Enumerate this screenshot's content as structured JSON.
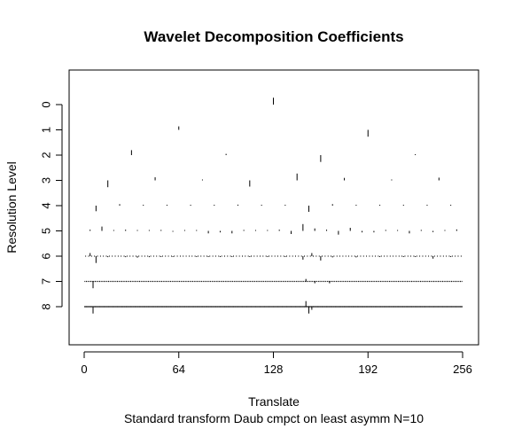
{
  "chart_data": {
    "type": "wavelet-coefficient-plot",
    "title": "Wavelet Decomposition Coefficients",
    "xlabel": "Translate",
    "sublabel": "Standard transform Daub cmpct on least asymm N=10",
    "ylabel": "Resolution Level",
    "xlim": [
      0,
      256
    ],
    "ylim": [
      0,
      8
    ],
    "x_ticks": [
      0,
      64,
      128,
      192,
      256
    ],
    "x_tick_labels": [
      "0",
      "64",
      "128",
      "192",
      "256"
    ],
    "y_ticks": [
      0,
      1,
      2,
      3,
      4,
      5,
      6,
      7,
      8
    ],
    "y_tick_labels": [
      "0",
      "1",
      "2",
      "3",
      "4",
      "5",
      "6",
      "7",
      "8"
    ],
    "bar_color": "#000000",
    "levels": [
      {
        "level": 0,
        "coefficients": [
          {
            "x": 128,
            "value": 0.55
          }
        ]
      },
      {
        "level": 1,
        "coefficients": [
          {
            "x": 64,
            "value": 0.28
          },
          {
            "x": 192,
            "value": -0.55
          }
        ]
      },
      {
        "level": 2,
        "coefficients": [
          {
            "x": 32,
            "value": 0.4
          },
          {
            "x": 96,
            "value": 0.1
          },
          {
            "x": 160,
            "value": -0.55
          },
          {
            "x": 224,
            "value": 0.06
          }
        ]
      },
      {
        "level": 3,
        "coefficients": [
          {
            "x": 16,
            "value": -0.55
          },
          {
            "x": 48,
            "value": 0.25
          },
          {
            "x": 80,
            "value": 0.05
          },
          {
            "x": 112,
            "value": -0.5
          },
          {
            "x": 144,
            "value": 0.55
          },
          {
            "x": 176,
            "value": 0.2
          },
          {
            "x": 208,
            "value": 0.04
          },
          {
            "x": 240,
            "value": 0.22
          }
        ]
      },
      {
        "level": 4,
        "coefficients": [
          {
            "x": 8,
            "value": -0.45
          },
          {
            "x": 24,
            "value": 0.12
          },
          {
            "x": 40,
            "value": 0.05
          },
          {
            "x": 56,
            "value": 0.04
          },
          {
            "x": 72,
            "value": 0.06
          },
          {
            "x": 88,
            "value": 0.03
          },
          {
            "x": 104,
            "value": 0.08
          },
          {
            "x": 120,
            "value": 0.05
          },
          {
            "x": 136,
            "value": 0.06
          },
          {
            "x": 152,
            "value": -0.5
          },
          {
            "x": 168,
            "value": 0.12
          },
          {
            "x": 184,
            "value": 0.05
          },
          {
            "x": 200,
            "value": 0.04
          },
          {
            "x": 216,
            "value": 0.05
          },
          {
            "x": 232,
            "value": 0.03
          },
          {
            "x": 248,
            "value": 0.04
          }
        ]
      },
      {
        "level": 5,
        "coefficients": [
          {
            "x": 4,
            "value": 0.1
          },
          {
            "x": 12,
            "value": 0.35
          },
          {
            "x": 20,
            "value": 0.05
          },
          {
            "x": 28,
            "value": 0.1
          },
          {
            "x": 36,
            "value": 0.05
          },
          {
            "x": 44,
            "value": 0.05
          },
          {
            "x": 52,
            "value": 0.08
          },
          {
            "x": 60,
            "value": -0.05
          },
          {
            "x": 68,
            "value": 0.05
          },
          {
            "x": 76,
            "value": 0.06
          },
          {
            "x": 84,
            "value": -0.2
          },
          {
            "x": 92,
            "value": -0.12
          },
          {
            "x": 100,
            "value": -0.2
          },
          {
            "x": 108,
            "value": 0.08
          },
          {
            "x": 116,
            "value": 0.05
          },
          {
            "x": 124,
            "value": 0.05
          },
          {
            "x": 132,
            "value": 0.1
          },
          {
            "x": 140,
            "value": -0.25
          },
          {
            "x": 148,
            "value": 0.55
          },
          {
            "x": 156,
            "value": 0.2
          },
          {
            "x": 164,
            "value": 0.1
          },
          {
            "x": 172,
            "value": -0.3
          },
          {
            "x": 180,
            "value": 0.25
          },
          {
            "x": 188,
            "value": -0.12
          },
          {
            "x": 196,
            "value": -0.12
          },
          {
            "x": 204,
            "value": 0.08
          },
          {
            "x": 212,
            "value": 0.05
          },
          {
            "x": 220,
            "value": -0.2
          },
          {
            "x": 228,
            "value": 0.08
          },
          {
            "x": 236,
            "value": -0.1
          },
          {
            "x": 244,
            "value": 0.05
          },
          {
            "x": 252,
            "value": 0.12
          }
        ]
      },
      {
        "level": 6,
        "coefficients": [
          {
            "x": 4,
            "value": 0.25
          },
          {
            "x": 8,
            "value": -0.55
          },
          {
            "x": 16,
            "value": -0.08
          },
          {
            "x": 28,
            "value": -0.08
          },
          {
            "x": 36,
            "value": -0.12
          },
          {
            "x": 44,
            "value": -0.08
          },
          {
            "x": 52,
            "value": -0.06
          },
          {
            "x": 60,
            "value": -0.05
          },
          {
            "x": 76,
            "value": -0.05
          },
          {
            "x": 84,
            "value": -0.05
          },
          {
            "x": 92,
            "value": -0.06
          },
          {
            "x": 100,
            "value": -0.05
          },
          {
            "x": 112,
            "value": -0.06
          },
          {
            "x": 124,
            "value": -0.05
          },
          {
            "x": 136,
            "value": -0.05
          },
          {
            "x": 148,
            "value": -0.28
          },
          {
            "x": 154,
            "value": 0.25
          },
          {
            "x": 160,
            "value": -0.35
          },
          {
            "x": 168,
            "value": -0.1
          },
          {
            "x": 184,
            "value": -0.1
          },
          {
            "x": 200,
            "value": -0.06
          },
          {
            "x": 216,
            "value": -0.05
          },
          {
            "x": 224,
            "value": -0.05
          },
          {
            "x": 236,
            "value": -0.2
          },
          {
            "x": 248,
            "value": -0.05
          }
        ]
      },
      {
        "level": 7,
        "coefficients": [
          {
            "x": 6,
            "value": -0.55
          },
          {
            "x": 150,
            "value": 0.2
          },
          {
            "x": 156,
            "value": -0.15
          },
          {
            "x": 166,
            "value": -0.15
          }
        ]
      },
      {
        "level": 8,
        "coefficients": [
          {
            "x": 6,
            "value": -0.55
          },
          {
            "x": 150,
            "value": 0.45
          },
          {
            "x": 152,
            "value": -0.55
          },
          {
            "x": 154,
            "value": -0.25
          }
        ]
      }
    ],
    "dense_levels": [
      {
        "level": 6,
        "step": 2
      },
      {
        "level": 7,
        "step": 1
      },
      {
        "level": 8,
        "step": 0.5
      }
    ]
  }
}
